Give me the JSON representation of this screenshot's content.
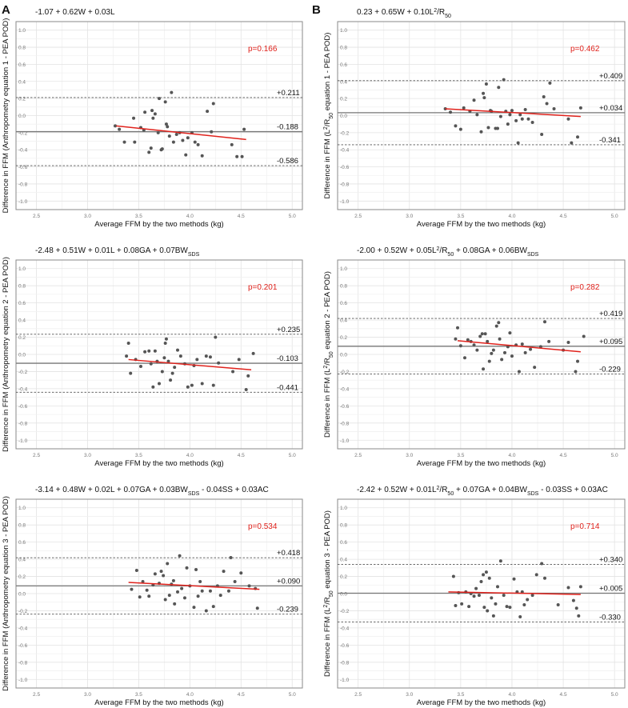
{
  "panel_letters": [
    "A",
    "B"
  ],
  "chart_data": [
    {
      "type": "scatter",
      "panel": "A",
      "equation_html": "-1.07 + 0.62W + 0.03L",
      "ylabel_html": "Difference in FFM (Anthropometry equation 1 - PEA POD)",
      "xlabel": "Average FFM by the two methods (kg)",
      "p_value": "p=0.166",
      "xlim": [
        2.3,
        5.1
      ],
      "ylim": [
        -1.1,
        1.1
      ],
      "x_ticks": [
        "2.5",
        "3.0",
        "3.5",
        "4.0",
        "4.5",
        "5.0"
      ],
      "y_ticks": [
        "-1.0",
        "-0.8",
        "-0.6",
        "-0.4",
        "-0.2",
        "0.0",
        "0.2",
        "0.4",
        "0.6",
        "0.8",
        "1.0"
      ],
      "mean_diff": -0.188,
      "upper_loa": 0.211,
      "lower_loa": -0.586,
      "mean_label": "-0.188",
      "upper_label": "+0.211",
      "lower_label": "-0.586",
      "trend": {
        "x": [
          3.28,
          4.55
        ],
        "y": [
          -0.12,
          -0.28
        ]
      },
      "points": [
        [
          3.27,
          -0.12
        ],
        [
          3.31,
          -0.16
        ],
        [
          3.36,
          -0.31
        ],
        [
          3.45,
          -0.03
        ],
        [
          3.46,
          -0.31
        ],
        [
          3.52,
          -0.14
        ],
        [
          3.55,
          -0.17
        ],
        [
          3.56,
          0.04
        ],
        [
          3.6,
          -0.43
        ],
        [
          3.62,
          -0.38
        ],
        [
          3.63,
          0.06
        ],
        [
          3.64,
          -0.03
        ],
        [
          3.66,
          0.02
        ],
        [
          3.69,
          -0.2
        ],
        [
          3.7,
          0.2
        ],
        [
          3.72,
          -0.4
        ],
        [
          3.73,
          -0.39
        ],
        [
          3.76,
          0.16
        ],
        [
          3.77,
          -0.1
        ],
        [
          3.78,
          -0.13
        ],
        [
          3.8,
          -0.24
        ],
        [
          3.82,
          0.27
        ],
        [
          3.84,
          -0.31
        ],
        [
          3.87,
          -0.22
        ],
        [
          3.9,
          -0.2
        ],
        [
          3.93,
          -0.29
        ],
        [
          3.96,
          -0.46
        ],
        [
          3.98,
          -0.26
        ],
        [
          4.02,
          -0.2
        ],
        [
          4.05,
          -0.31
        ],
        [
          4.08,
          -0.34
        ],
        [
          4.12,
          -0.47
        ],
        [
          4.17,
          0.05
        ],
        [
          4.21,
          -0.19
        ],
        [
          4.23,
          0.14
        ],
        [
          4.41,
          -0.34
        ],
        [
          4.46,
          -0.48
        ],
        [
          4.51,
          -0.48
        ],
        [
          4.53,
          -0.16
        ]
      ]
    },
    {
      "type": "scatter",
      "panel": "B",
      "equation_html": "0.23 + 0.65W + 0.10L<tspan baseline-shift=\"super\" font-size=\"7\">2</tspan>/R<tspan baseline-shift=\"sub\" font-size=\"7\">50</tspan>",
      "ylabel_html": "Difference in FFM (L<tspan baseline-shift=\"super\" font-size=\"7\">2</tspan>/R<tspan baseline-shift=\"sub\" font-size=\"7\">50</tspan> equation 1 - PEA POD)",
      "xlabel": "Average FFM by the two methods (kg)",
      "p_value": "p=0.462",
      "xlim": [
        2.3,
        5.1
      ],
      "ylim": [
        -1.1,
        1.1
      ],
      "x_ticks": [
        "2.5",
        "3.0",
        "3.5",
        "4.0",
        "4.5",
        "5.0"
      ],
      "y_ticks": [
        "-1.0",
        "-0.8",
        "-0.6",
        "-0.4",
        "-0.2",
        "0.0",
        "0.2",
        "0.4",
        "0.6",
        "0.8",
        "1.0"
      ],
      "mean_diff": 0.034,
      "upper_loa": 0.409,
      "lower_loa": -0.341,
      "mean_label": "+0.034",
      "upper_label": "+0.409",
      "lower_label": "-0.341",
      "trend": {
        "x": [
          3.35,
          4.67
        ],
        "y": [
          0.08,
          -0.01
        ]
      },
      "points": [
        [
          3.35,
          0.08
        ],
        [
          3.4,
          0.04
        ],
        [
          3.45,
          -0.12
        ],
        [
          3.5,
          -0.16
        ],
        [
          3.53,
          0.09
        ],
        [
          3.59,
          0.05
        ],
        [
          3.63,
          0.18
        ],
        [
          3.66,
          0.01
        ],
        [
          3.7,
          -0.19
        ],
        [
          3.72,
          0.26
        ],
        [
          3.73,
          0.21
        ],
        [
          3.75,
          0.37
        ],
        [
          3.77,
          -0.14
        ],
        [
          3.79,
          0.06
        ],
        [
          3.8,
          0.05
        ],
        [
          3.84,
          -0.15
        ],
        [
          3.86,
          -0.15
        ],
        [
          3.87,
          0.33
        ],
        [
          3.89,
          -0.01
        ],
        [
          3.92,
          0.42
        ],
        [
          3.94,
          0.05
        ],
        [
          3.96,
          -0.1
        ],
        [
          3.98,
          0.01
        ],
        [
          4.0,
          0.06
        ],
        [
          4.04,
          -0.06
        ],
        [
          4.06,
          -0.32
        ],
        [
          4.08,
          0.01
        ],
        [
          4.1,
          -0.04
        ],
        [
          4.13,
          0.07
        ],
        [
          4.16,
          -0.04
        ],
        [
          4.2,
          -0.08
        ],
        [
          4.29,
          -0.22
        ],
        [
          4.31,
          0.22
        ],
        [
          4.34,
          0.14
        ],
        [
          4.37,
          0.38
        ],
        [
          4.41,
          0.08
        ],
        [
          4.55,
          -0.04
        ],
        [
          4.58,
          -0.32
        ],
        [
          4.64,
          -0.25
        ],
        [
          4.67,
          0.09
        ]
      ]
    },
    {
      "type": "scatter",
      "panel": "A",
      "equation_html": "-2.48 + 0.51W + 0.01L + 0.08GA + 0.07BW<tspan baseline-shift=\"sub\" font-size=\"7\">SDS</tspan>",
      "ylabel_html": "Difference in FFM (Anthropometry equation 2 - PEA POD)",
      "xlabel": "Average FFM by the two methods (kg)",
      "p_value": "p=0.201",
      "xlim": [
        2.3,
        5.1
      ],
      "ylim": [
        -1.1,
        1.1
      ],
      "x_ticks": [
        "2.5",
        "3.0",
        "3.5",
        "4.0",
        "4.5",
        "5.0"
      ],
      "y_ticks": [
        "-1.0",
        "-0.8",
        "-0.6",
        "-0.4",
        "-0.2",
        "0.0",
        "0.2",
        "0.4",
        "0.6",
        "0.8",
        "1.0"
      ],
      "mean_diff": -0.103,
      "upper_loa": 0.235,
      "lower_loa": -0.441,
      "mean_label": "-0.103",
      "upper_label": "+0.235",
      "lower_label": "-0.441",
      "trend": {
        "x": [
          3.4,
          4.6
        ],
        "y": [
          -0.06,
          -0.18
        ]
      },
      "points": [
        [
          3.38,
          -0.02
        ],
        [
          3.4,
          0.13
        ],
        [
          3.42,
          -0.22
        ],
        [
          3.47,
          -0.06
        ],
        [
          3.52,
          -0.14
        ],
        [
          3.56,
          0.03
        ],
        [
          3.6,
          0.04
        ],
        [
          3.62,
          -0.11
        ],
        [
          3.64,
          -0.38
        ],
        [
          3.66,
          0.04
        ],
        [
          3.68,
          -0.08
        ],
        [
          3.7,
          -0.34
        ],
        [
          3.73,
          -0.2
        ],
        [
          3.75,
          -0.04
        ],
        [
          3.76,
          0.13
        ],
        [
          3.77,
          0.18
        ],
        [
          3.79,
          -0.08
        ],
        [
          3.81,
          -0.3
        ],
        [
          3.83,
          -0.22
        ],
        [
          3.85,
          -0.15
        ],
        [
          3.88,
          0.05
        ],
        [
          3.91,
          -0.02
        ],
        [
          3.95,
          -0.11
        ],
        [
          3.98,
          -0.38
        ],
        [
          4.02,
          -0.36
        ],
        [
          4.04,
          -0.13
        ],
        [
          4.07,
          -0.06
        ],
        [
          4.12,
          -0.34
        ],
        [
          4.16,
          -0.02
        ],
        [
          4.2,
          -0.03
        ],
        [
          4.23,
          -0.36
        ],
        [
          4.25,
          0.2
        ],
        [
          4.28,
          -0.1
        ],
        [
          4.42,
          -0.2
        ],
        [
          4.48,
          -0.06
        ],
        [
          4.55,
          -0.41
        ],
        [
          4.57,
          -0.25
        ],
        [
          4.62,
          0.01
        ]
      ]
    },
    {
      "type": "scatter",
      "panel": "B",
      "equation_html": "-2.00 + 0.52W + 0.05L<tspan baseline-shift=\"super\" font-size=\"7\">2</tspan>/R<tspan baseline-shift=\"sub\" font-size=\"7\">50</tspan> + 0.08GA + 0.06BW<tspan baseline-shift=\"sub\" font-size=\"7\">SDS</tspan>",
      "ylabel_html": "Difference in FFM (L<tspan baseline-shift=\"super\" font-size=\"7\">2</tspan>/R<tspan baseline-shift=\"sub\" font-size=\"7\">50</tspan> equation 2 - PEA POD)",
      "xlabel": "Average FFM by the two methods (kg)",
      "p_value": "p=0.282",
      "xlim": [
        2.3,
        5.1
      ],
      "ylim": [
        -1.1,
        1.1
      ],
      "x_ticks": [
        "2.5",
        "3.0",
        "3.5",
        "4.0",
        "4.5",
        "5.0"
      ],
      "y_ticks": [
        "-1.0",
        "-0.8",
        "-0.6",
        "-0.4",
        "-0.2",
        "0.0",
        "0.2",
        "0.4",
        "0.6",
        "0.8",
        "1.0"
      ],
      "mean_diff": 0.095,
      "upper_loa": 0.419,
      "lower_loa": -0.229,
      "mean_label": "+0.095",
      "upper_label": "+0.419",
      "lower_label": "-0.229",
      "trend": {
        "x": [
          3.47,
          4.67
        ],
        "y": [
          0.16,
          0.03
        ]
      },
      "points": [
        [
          3.45,
          0.18
        ],
        [
          3.47,
          0.31
        ],
        [
          3.5,
          0.1
        ],
        [
          3.54,
          -0.04
        ],
        [
          3.57,
          0.17
        ],
        [
          3.6,
          0.15
        ],
        [
          3.63,
          0.11
        ],
        [
          3.66,
          0.05
        ],
        [
          3.69,
          0.21
        ],
        [
          3.71,
          0.24
        ],
        [
          3.72,
          -0.17
        ],
        [
          3.74,
          0.24
        ],
        [
          3.76,
          0.15
        ],
        [
          3.78,
          -0.08
        ],
        [
          3.8,
          0.01
        ],
        [
          3.82,
          0.05
        ],
        [
          3.85,
          0.33
        ],
        [
          3.87,
          0.37
        ],
        [
          3.88,
          0.18
        ],
        [
          3.9,
          -0.06
        ],
        [
          3.93,
          0.02
        ],
        [
          3.96,
          0.09
        ],
        [
          3.98,
          0.25
        ],
        [
          4.0,
          -0.02
        ],
        [
          4.04,
          0.11
        ],
        [
          4.07,
          -0.2
        ],
        [
          4.1,
          0.12
        ],
        [
          4.13,
          0.02
        ],
        [
          4.18,
          0.06
        ],
        [
          4.22,
          -0.15
        ],
        [
          4.28,
          0.09
        ],
        [
          4.32,
          0.38
        ],
        [
          4.36,
          0.15
        ],
        [
          4.5,
          0.05
        ],
        [
          4.55,
          0.14
        ],
        [
          4.62,
          -0.2
        ],
        [
          4.64,
          -0.08
        ],
        [
          4.7,
          0.21
        ]
      ]
    },
    {
      "type": "scatter",
      "panel": "A",
      "equation_html": "-3.14 + 0.48W + 0.02L + 0.07GA + 0.03BW<tspan baseline-shift=\"sub\" font-size=\"7\">SDS</tspan> - 0.04SS + 0.03AC",
      "ylabel_html": "Difference in FFM (Anthropometry equation 3 - PEA POD)",
      "xlabel": "Average FFM by the two methods (kg)",
      "p_value": "p=0.534",
      "xlim": [
        2.3,
        5.1
      ],
      "ylim": [
        -1.1,
        1.1
      ],
      "x_ticks": [
        "2.5",
        "3.0",
        "3.5",
        "4.0",
        "4.5",
        "5.0"
      ],
      "y_ticks": [
        "-1.0",
        "-0.8",
        "-0.6",
        "-0.4",
        "-0.2",
        "0.0",
        "0.2",
        "0.4",
        "0.6",
        "0.8",
        "1.0"
      ],
      "mean_diff": 0.09,
      "upper_loa": 0.418,
      "lower_loa": -0.239,
      "mean_label": "+0.090",
      "upper_label": "+0.418",
      "lower_label": "-0.239",
      "trend": {
        "x": [
          3.4,
          4.68
        ],
        "y": [
          0.13,
          0.05
        ]
      },
      "points": [
        [
          3.43,
          0.05
        ],
        [
          3.48,
          0.27
        ],
        [
          3.51,
          -0.04
        ],
        [
          3.54,
          0.14
        ],
        [
          3.58,
          0.04
        ],
        [
          3.6,
          -0.03
        ],
        [
          3.64,
          0.1
        ],
        [
          3.66,
          0.23
        ],
        [
          3.7,
          0.12
        ],
        [
          3.72,
          0.26
        ],
        [
          3.74,
          0.21
        ],
        [
          3.76,
          -0.07
        ],
        [
          3.78,
          0.35
        ],
        [
          3.8,
          -0.02
        ],
        [
          3.82,
          0.11
        ],
        [
          3.84,
          0.15
        ],
        [
          3.85,
          -0.12
        ],
        [
          3.88,
          0.02
        ],
        [
          3.9,
          0.44
        ],
        [
          3.92,
          0.06
        ],
        [
          3.95,
          -0.05
        ],
        [
          3.97,
          0.3
        ],
        [
          4.0,
          0.09
        ],
        [
          4.04,
          -0.16
        ],
        [
          4.06,
          0.28
        ],
        [
          4.08,
          -0.03
        ],
        [
          4.1,
          0.14
        ],
        [
          4.12,
          0.03
        ],
        [
          4.16,
          -0.2
        ],
        [
          4.2,
          0.03
        ],
        [
          4.23,
          -0.15
        ],
        [
          4.27,
          0.09
        ],
        [
          4.3,
          -0.02
        ],
        [
          4.33,
          0.26
        ],
        [
          4.38,
          0.03
        ],
        [
          4.4,
          0.42
        ],
        [
          4.44,
          0.14
        ],
        [
          4.5,
          0.24
        ],
        [
          4.58,
          0.09
        ],
        [
          4.64,
          0.06
        ],
        [
          4.66,
          -0.17
        ]
      ]
    },
    {
      "type": "scatter",
      "panel": "B",
      "equation_html": "-2.42 + 0.52W + 0.01L<tspan baseline-shift=\"super\" font-size=\"7\">2</tspan>/R<tspan baseline-shift=\"sub\" font-size=\"7\">50</tspan> + 0.07GA + 0.04BW<tspan baseline-shift=\"sub\" font-size=\"7\">SDS</tspan> - 0.03SS + 0.03AC",
      "ylabel_html": "Difference in FFM (L<tspan baseline-shift=\"super\" font-size=\"7\">2</tspan>/R<tspan baseline-shift=\"sub\" font-size=\"7\">50</tspan> equation 3 - PEA POD)",
      "xlabel": "Average FFM by the two methods (kg)",
      "p_value": "p=0.714",
      "xlim": [
        2.3,
        5.1
      ],
      "ylim": [
        -1.1,
        1.1
      ],
      "x_ticks": [
        "2.5",
        "3.0",
        "3.5",
        "4.0",
        "4.5",
        "5.0"
      ],
      "y_ticks": [
        "-1.0",
        "-0.8",
        "-0.6",
        "-0.4",
        "-0.2",
        "0.0",
        "0.2",
        "0.4",
        "0.6",
        "0.8",
        "1.0"
      ],
      "mean_diff": 0.005,
      "upper_loa": 0.34,
      "lower_loa": -0.33,
      "mean_label": "+0.005",
      "upper_label": "+0.340",
      "lower_label": "-0.330",
      "trend": {
        "x": [
          3.38,
          4.67
        ],
        "y": [
          0.02,
          -0.01
        ]
      },
      "points": [
        [
          3.43,
          0.2
        ],
        [
          3.45,
          -0.14
        ],
        [
          3.48,
          0.01
        ],
        [
          3.51,
          -0.12
        ],
        [
          3.55,
          0.02
        ],
        [
          3.58,
          -0.15
        ],
        [
          3.6,
          0.0
        ],
        [
          3.63,
          -0.03
        ],
        [
          3.65,
          0.06
        ],
        [
          3.68,
          -0.02
        ],
        [
          3.7,
          0.14
        ],
        [
          3.72,
          0.22
        ],
        [
          3.73,
          -0.16
        ],
        [
          3.75,
          0.25
        ],
        [
          3.76,
          -0.2
        ],
        [
          3.78,
          0.18
        ],
        [
          3.8,
          -0.05
        ],
        [
          3.82,
          -0.26
        ],
        [
          3.84,
          -0.12
        ],
        [
          3.86,
          0.08
        ],
        [
          3.89,
          0.38
        ],
        [
          3.92,
          -0.02
        ],
        [
          3.95,
          -0.15
        ],
        [
          3.98,
          -0.16
        ],
        [
          4.02,
          0.17
        ],
        [
          4.05,
          0.02
        ],
        [
          4.08,
          -0.27
        ],
        [
          4.1,
          0.02
        ],
        [
          4.12,
          -0.13
        ],
        [
          4.15,
          -0.07
        ],
        [
          4.2,
          -0.02
        ],
        [
          4.24,
          0.22
        ],
        [
          4.29,
          0.35
        ],
        [
          4.32,
          0.18
        ],
        [
          4.45,
          -0.13
        ],
        [
          4.55,
          0.07
        ],
        [
          4.6,
          -0.08
        ],
        [
          4.63,
          -0.17
        ],
        [
          4.65,
          -0.26
        ],
        [
          4.67,
          0.08
        ]
      ]
    }
  ]
}
